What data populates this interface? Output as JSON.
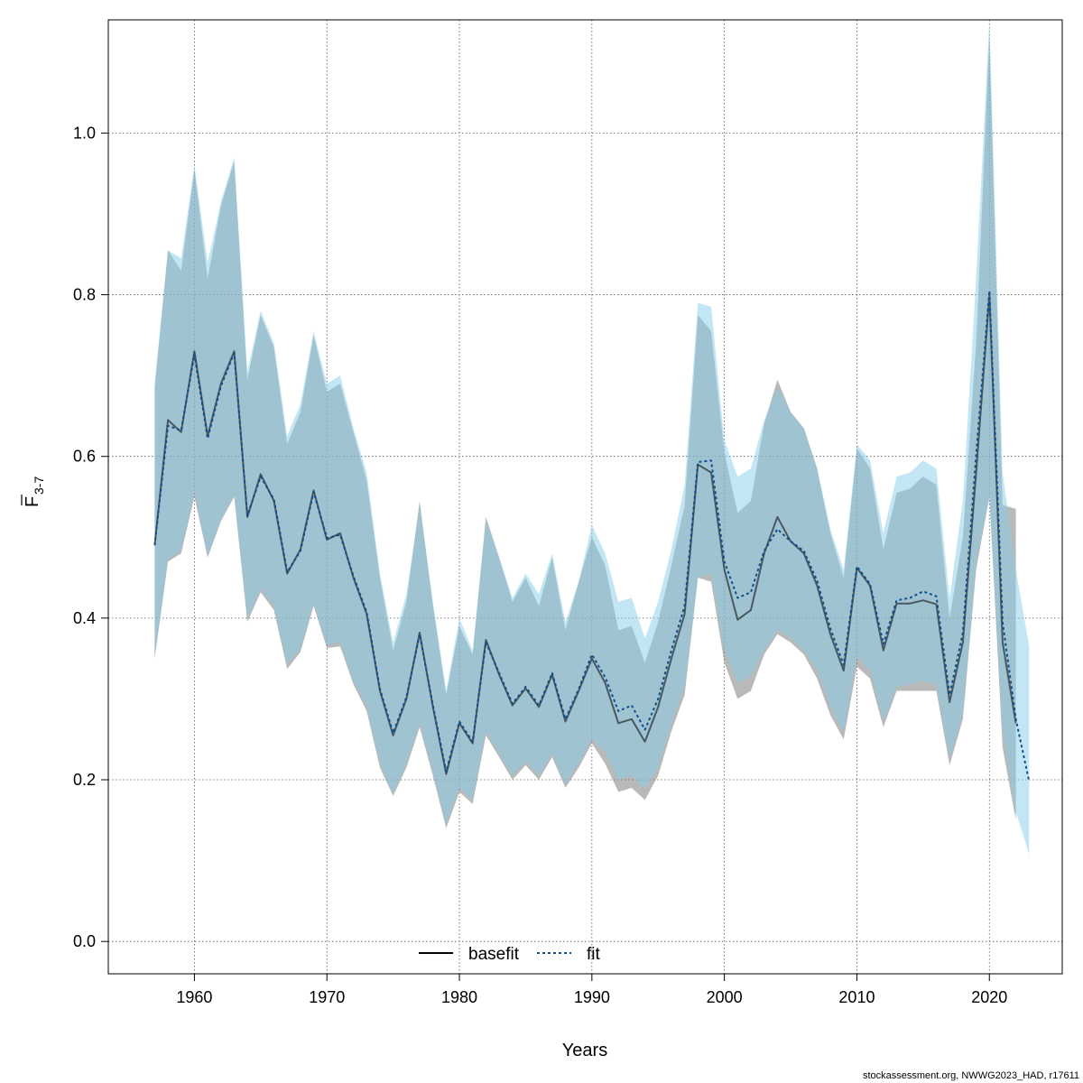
{
  "chart_data": {
    "type": "line",
    "xlabel": "Years",
    "ylabel_main": "F",
    "ylabel_sub": "3-7",
    "xlim": [
      1953.5,
      2025.5
    ],
    "ylim": [
      -0.04,
      1.14
    ],
    "xticks": [
      1960,
      1970,
      1980,
      1990,
      2000,
      2010,
      2020
    ],
    "yticks": [
      0.0,
      0.2,
      0.4,
      0.6,
      0.8,
      1.0
    ],
    "grid": true,
    "legend_position": "bottom-center",
    "colors": {
      "basefit_band": "#7f7f7f",
      "fit_band": "#87ceeb",
      "basefit_line": "#000000",
      "fit_line": "#104e8b"
    },
    "years": [
      1957,
      1958,
      1959,
      1960,
      1961,
      1962,
      1963,
      1964,
      1965,
      1966,
      1967,
      1968,
      1969,
      1970,
      1971,
      1972,
      1973,
      1974,
      1975,
      1976,
      1977,
      1978,
      1979,
      1980,
      1981,
      1982,
      1983,
      1984,
      1985,
      1986,
      1987,
      1988,
      1989,
      1990,
      1991,
      1992,
      1993,
      1994,
      1995,
      1996,
      1997,
      1998,
      1999,
      2000,
      2001,
      2002,
      2003,
      2004,
      2005,
      2006,
      2007,
      2008,
      2009,
      2010,
      2011,
      2012,
      2013,
      2014,
      2015,
      2016,
      2017,
      2018,
      2019,
      2020,
      2021,
      2022,
      2023
    ],
    "series": [
      {
        "name": "basefit",
        "values": [
          0.49,
          0.645,
          0.63,
          0.73,
          0.625,
          0.69,
          0.73,
          0.525,
          0.578,
          0.545,
          0.455,
          0.485,
          0.558,
          0.497,
          0.505,
          0.45,
          0.405,
          0.31,
          0.255,
          0.3,
          0.382,
          0.29,
          0.207,
          0.27,
          0.245,
          0.373,
          0.33,
          0.292,
          0.313,
          0.29,
          0.33,
          0.272,
          0.31,
          0.35,
          0.32,
          0.27,
          0.275,
          0.247,
          0.29,
          0.35,
          0.405,
          0.59,
          0.58,
          0.46,
          0.398,
          0.41,
          0.48,
          0.525,
          0.495,
          0.48,
          0.44,
          0.38,
          0.335,
          0.462,
          0.44,
          0.36,
          0.418,
          0.418,
          0.422,
          0.417,
          0.296,
          0.37,
          0.58,
          0.8,
          0.37,
          0.27,
          null
        ],
        "lower": [
          0.35,
          0.47,
          0.48,
          0.55,
          0.475,
          0.52,
          0.55,
          0.395,
          0.432,
          0.41,
          0.337,
          0.358,
          0.415,
          0.363,
          0.365,
          0.318,
          0.285,
          0.215,
          0.18,
          0.215,
          0.265,
          0.205,
          0.14,
          0.185,
          0.17,
          0.255,
          0.228,
          0.2,
          0.218,
          0.2,
          0.228,
          0.19,
          0.215,
          0.245,
          0.22,
          0.185,
          0.19,
          0.175,
          0.205,
          0.26,
          0.305,
          0.45,
          0.445,
          0.345,
          0.3,
          0.31,
          0.355,
          0.38,
          0.37,
          0.355,
          0.325,
          0.28,
          0.25,
          0.34,
          0.325,
          0.265,
          0.31,
          0.31,
          0.31,
          0.31,
          0.218,
          0.275,
          0.46,
          0.55,
          0.24,
          0.15,
          null
        ],
        "upper": [
          0.685,
          0.855,
          0.83,
          0.955,
          0.82,
          0.91,
          0.965,
          0.695,
          0.775,
          0.735,
          0.615,
          0.655,
          0.75,
          0.68,
          0.69,
          0.63,
          0.57,
          0.45,
          0.36,
          0.42,
          0.545,
          0.415,
          0.305,
          0.39,
          0.355,
          0.525,
          0.475,
          0.42,
          0.45,
          0.415,
          0.475,
          0.385,
          0.445,
          0.5,
          0.465,
          0.385,
          0.39,
          0.345,
          0.395,
          0.465,
          0.54,
          0.775,
          0.755,
          0.605,
          0.53,
          0.545,
          0.64,
          0.695,
          0.655,
          0.635,
          0.585,
          0.505,
          0.45,
          0.61,
          0.585,
          0.485,
          0.555,
          0.56,
          0.575,
          0.565,
          0.4,
          0.5,
          0.74,
          1.12,
          0.54,
          0.535,
          null
        ]
      },
      {
        "name": "fit",
        "values": [
          0.49,
          0.638,
          0.632,
          0.726,
          0.622,
          0.687,
          0.728,
          0.527,
          0.575,
          0.547,
          0.457,
          0.483,
          0.556,
          0.499,
          0.503,
          0.452,
          0.407,
          0.312,
          0.258,
          0.302,
          0.38,
          0.292,
          0.21,
          0.272,
          0.247,
          0.37,
          0.332,
          0.294,
          0.315,
          0.292,
          0.332,
          0.275,
          0.312,
          0.355,
          0.327,
          0.285,
          0.292,
          0.262,
          0.3,
          0.36,
          0.415,
          0.593,
          0.595,
          0.47,
          0.425,
          0.432,
          0.483,
          0.51,
          0.495,
          0.483,
          0.446,
          0.387,
          0.342,
          0.464,
          0.442,
          0.368,
          0.422,
          0.425,
          0.433,
          0.427,
          0.305,
          0.382,
          0.602,
          0.805,
          0.395,
          0.275,
          0.198
        ],
        "lower": [
          0.352,
          0.472,
          0.485,
          0.555,
          0.478,
          0.522,
          0.552,
          0.4,
          0.436,
          0.415,
          0.343,
          0.362,
          0.418,
          0.367,
          0.37,
          0.322,
          0.29,
          0.22,
          0.182,
          0.22,
          0.27,
          0.21,
          0.145,
          0.19,
          0.175,
          0.26,
          0.232,
          0.205,
          0.222,
          0.205,
          0.232,
          0.195,
          0.22,
          0.25,
          0.235,
          0.2,
          0.205,
          0.188,
          0.215,
          0.27,
          0.315,
          0.45,
          0.455,
          0.36,
          0.32,
          0.328,
          0.36,
          0.385,
          0.375,
          0.36,
          0.335,
          0.29,
          0.258,
          0.352,
          0.335,
          0.272,
          0.315,
          0.318,
          0.322,
          0.318,
          0.225,
          0.282,
          0.47,
          0.55,
          0.26,
          0.16,
          0.108
        ],
        "upper": [
          0.69,
          0.855,
          0.845,
          0.96,
          0.84,
          0.915,
          0.97,
          0.705,
          0.78,
          0.74,
          0.625,
          0.665,
          0.755,
          0.69,
          0.7,
          0.635,
          0.58,
          0.455,
          0.37,
          0.43,
          0.54,
          0.42,
          0.31,
          0.4,
          0.36,
          0.52,
          0.475,
          0.425,
          0.455,
          0.43,
          0.48,
          0.395,
          0.445,
          0.515,
          0.48,
          0.42,
          0.425,
          0.375,
          0.42,
          0.485,
          0.565,
          0.79,
          0.785,
          0.62,
          0.575,
          0.585,
          0.645,
          0.685,
          0.655,
          0.635,
          0.585,
          0.51,
          0.46,
          0.615,
          0.595,
          0.505,
          0.575,
          0.58,
          0.595,
          0.585,
          0.425,
          0.545,
          0.82,
          1.14,
          0.58,
          0.46,
          0.365
        ]
      }
    ]
  },
  "credit": "stockassessment.org, NWWG2023_HAD, r17611"
}
